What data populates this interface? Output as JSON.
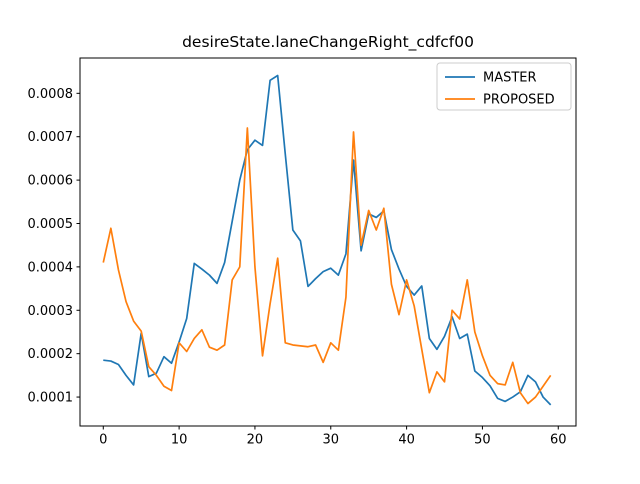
{
  "figure": {
    "background": "#ffffff"
  },
  "chart_data": {
    "type": "line",
    "title": "desireState.laneChangeRight_cdfcf00",
    "xlabel": "",
    "ylabel": "",
    "grid": false,
    "legend_position": "upper right",
    "xlim": [
      -3.07,
      62.34
    ],
    "ylim": [
      3.33e-05,
      0.0008814
    ],
    "xticks": [
      0,
      10,
      20,
      30,
      40,
      50,
      60
    ],
    "xtick_labels": [
      "0",
      "10",
      "20",
      "30",
      "40",
      "50",
      "60"
    ],
    "yticks": [
      0.0001,
      0.0002,
      0.0003,
      0.0004,
      0.0005,
      0.0006,
      0.0007,
      0.0008
    ],
    "ytick_labels": [
      "0.0001",
      "0.0002",
      "0.0003",
      "0.0004",
      "0.0005",
      "0.0006",
      "0.0007",
      "0.0008"
    ],
    "x": [
      0,
      1,
      2,
      3,
      4,
      5,
      6,
      7,
      8,
      9,
      10,
      11,
      12,
      13,
      14,
      15,
      16,
      17,
      18,
      19,
      20,
      21,
      22,
      23,
      24,
      25,
      26,
      27,
      28,
      29,
      30,
      31,
      32,
      33,
      34,
      35,
      36,
      37,
      38,
      39,
      40,
      41,
      42,
      43,
      44,
      45,
      46,
      47,
      48,
      49,
      50,
      51,
      52,
      53,
      54,
      55,
      56,
      57,
      58,
      59
    ],
    "series": [
      {
        "name": "MASTER",
        "color": "#1f77b4",
        "values": [
          0.000185,
          0.000183,
          0.000175,
          0.00015,
          0.000128,
          0.000247,
          0.000147,
          0.000155,
          0.000193,
          0.000178,
          0.000227,
          0.000281,
          0.000408,
          0.000395,
          0.000381,
          0.000362,
          0.00041,
          0.000505,
          0.0006,
          0.00067,
          0.000692,
          0.00068,
          0.00083,
          0.000841,
          0.00066,
          0.000485,
          0.00046,
          0.000355,
          0.000373,
          0.000389,
          0.000397,
          0.000381,
          0.00043,
          0.000646,
          0.000437,
          0.000522,
          0.000514,
          0.000529,
          0.00044,
          0.000395,
          0.000355,
          0.000335,
          0.000356,
          0.000235,
          0.00021,
          0.00024,
          0.000285,
          0.000235,
          0.000245,
          0.00016,
          0.000145,
          0.000126,
          9.7e-05,
          9e-05,
          0.0001,
          0.000112,
          0.00015,
          0.000135,
          0.0001,
          8.2e-05
        ]
      },
      {
        "name": "PROPOSED",
        "color": "#ff7f0e",
        "values": [
          0.00041,
          0.000489,
          0.000393,
          0.00032,
          0.000275,
          0.000252,
          0.00017,
          0.00015,
          0.000125,
          0.000115,
          0.000225,
          0.000205,
          0.000235,
          0.000255,
          0.000215,
          0.000208,
          0.00022,
          0.00037,
          0.0004,
          0.00072,
          0.0004,
          0.000195,
          0.000315,
          0.00042,
          0.000225,
          0.00022,
          0.000218,
          0.000216,
          0.00022,
          0.00018,
          0.000225,
          0.000208,
          0.00033,
          0.000711,
          0.00045,
          0.00053,
          0.000485,
          0.000535,
          0.00036,
          0.00029,
          0.00037,
          0.00031,
          0.00021,
          0.00011,
          0.000158,
          0.000135,
          0.0003,
          0.00028,
          0.00037,
          0.00025,
          0.000195,
          0.00015,
          0.000131,
          0.000128,
          0.00018,
          0.00011,
          8.5e-05,
          0.0001,
          0.000125,
          0.00015
        ]
      }
    ]
  }
}
